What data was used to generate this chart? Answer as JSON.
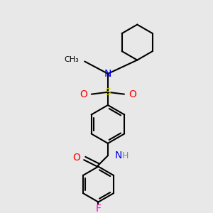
{
  "background_color": "#e8e8e8",
  "bond_color": "#000000",
  "bond_lw": 1.5,
  "colors": {
    "N": "#0000ee",
    "O": "#ff0000",
    "S": "#cccc00",
    "F": "#ff00cc",
    "H": "#778899",
    "C": "#000000"
  },
  "font_size": 9
}
